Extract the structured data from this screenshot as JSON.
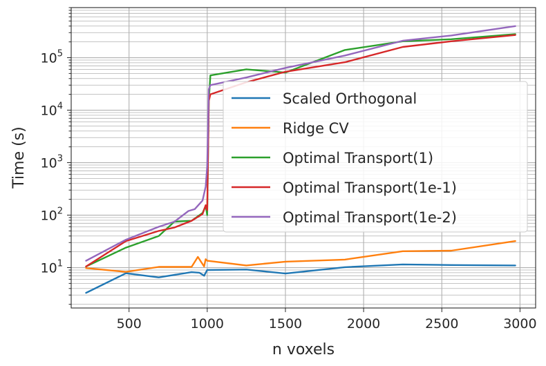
{
  "chart_data": {
    "type": "line",
    "xlabel": "n voxels",
    "ylabel": "Time (s)",
    "xlim": [
      130,
      3100
    ],
    "ylim": [
      1.7,
      900000
    ],
    "yscale": "log",
    "x_ticks": [
      500,
      1000,
      1500,
      2000,
      2500,
      3000
    ],
    "y_ticks": [
      {
        "value": 10,
        "base": "10",
        "exp": "1"
      },
      {
        "value": 100,
        "base": "10",
        "exp": "2"
      },
      {
        "value": 1000,
        "base": "10",
        "exp": "3"
      },
      {
        "value": 10000,
        "base": "10",
        "exp": "4"
      },
      {
        "value": 100000,
        "base": "10",
        "exp": "5"
      }
    ],
    "grid": true,
    "legend_position": "center-right",
    "series": [
      {
        "name": "Scaled Orthogonal",
        "color": "#1f77b4",
        "x": [
          225,
          480,
          690,
          900,
          950,
          980,
          1000,
          1250,
          1500,
          1880,
          2250,
          2560,
          2970
        ],
        "y": [
          3.3,
          7.8,
          6.5,
          8.2,
          8.0,
          7.0,
          9.0,
          9.2,
          7.7,
          10.2,
          11.5,
          11.2,
          11.0
        ]
      },
      {
        "name": "Ridge CV",
        "color": "#ff7f0e",
        "x": [
          225,
          480,
          690,
          900,
          940,
          980,
          990,
          1000,
          1250,
          1500,
          1880,
          2250,
          2560,
          2970
        ],
        "y": [
          9.8,
          8.3,
          10.3,
          10.3,
          16.0,
          10.5,
          14.5,
          13.5,
          11.0,
          13.0,
          14.2,
          20.5,
          21.0,
          32.0
        ]
      },
      {
        "name": "Optimal Transport(1)",
        "color": "#2ca02c",
        "x": [
          225,
          480,
          690,
          790,
          900,
          970,
          990,
          1000,
          1010,
          1020,
          1250,
          1500,
          1880,
          2250,
          2560,
          2970
        ],
        "y": [
          10.5,
          24,
          40,
          75,
          78,
          110,
          150,
          100,
          15000,
          46000,
          60000,
          52000,
          140000,
          205000,
          225000,
          280000
        ]
      },
      {
        "name": "Optimal Transport(1e-1)",
        "color": "#d62728",
        "x": [
          225,
          480,
          690,
          790,
          900,
          970,
          990,
          1000,
          1010,
          1020,
          1250,
          1500,
          1880,
          2250,
          2560,
          2970
        ],
        "y": [
          10.5,
          32,
          50,
          58,
          78,
          105,
          155,
          125,
          15000,
          20000,
          34000,
          54000,
          82000,
          160000,
          205000,
          270000
        ]
      },
      {
        "name": "Optimal Transport(1e-2)",
        "color": "#9467bd",
        "x": [
          225,
          480,
          690,
          790,
          880,
          920,
          970,
          990,
          1000,
          1010,
          1020,
          1250,
          1500,
          1880,
          2250,
          2560,
          2970
        ],
        "y": [
          13.5,
          34,
          60,
          75,
          120,
          130,
          190,
          350,
          850,
          25000,
          30000,
          42000,
          64000,
          110000,
          210000,
          265000,
          400000
        ]
      }
    ]
  }
}
